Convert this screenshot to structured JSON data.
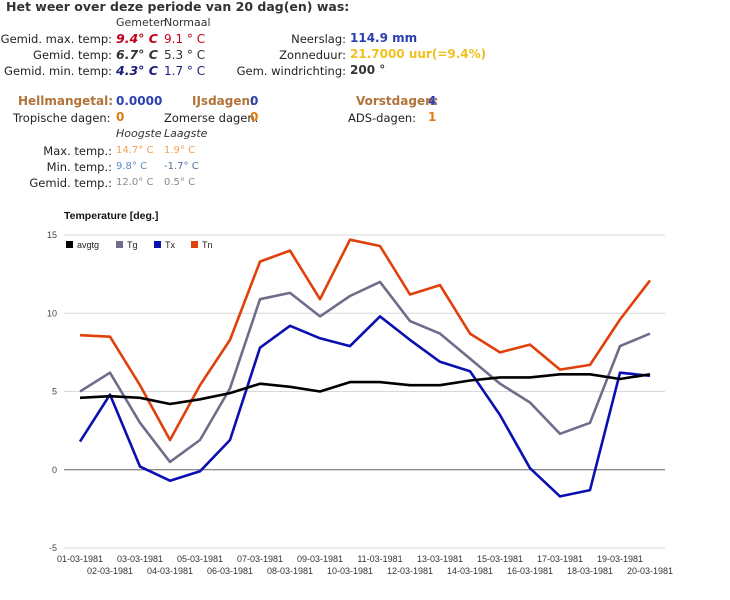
{
  "summary": {
    "title": "Het weer over deze periode van 20 dag(en) was:",
    "header_measured": "Gemeten",
    "header_normal": "Normaal",
    "rows": [
      {
        "label": "Gemid. max. temp:",
        "measured": "9.4° C",
        "normal": "9.1 ° C",
        "measured_color": "#c0001a"
      },
      {
        "label": "Gemid. temp:",
        "measured": "6.7° C",
        "normal": "5.3 ° C",
        "measured_color": "#333333"
      },
      {
        "label": "Gemid. min. temp:",
        "measured": "4.3° C",
        "normal": "1.7 ° C",
        "measured_color": "#1b1b7a"
      }
    ],
    "right": [
      {
        "label": "Neerslag:",
        "value": "114.9 mm"
      },
      {
        "label": "Zonneduur:",
        "value": "21.7000 uur",
        "extra": "(=9.4%)"
      },
      {
        "label": "Gem. windrichting:",
        "value": "200 °"
      }
    ]
  },
  "counts": {
    "hellmann_label": "Hellmangetal:",
    "hellmann_value": "0.0000",
    "ijsdagen_label": "IJsdagen:",
    "ijsdagen_value": "0",
    "vorstdagen_label": "Vorstdagen:",
    "vorstdagen_value": "4",
    "tropische_label": "Tropische dagen:",
    "tropische_value": "0",
    "zomerse_label": "Zomerse dagen:",
    "zomerse_value": "0",
    "ads_label": "ADS-dagen:",
    "ads_value": "1"
  },
  "extremes": {
    "header_high": "Hoogste",
    "header_low": "Laagste",
    "rows": [
      {
        "label": "Max. temp.:",
        "high": "14.7° C",
        "low": "1.9° C"
      },
      {
        "label": "Min. temp.:",
        "high": "9.8° C",
        "low": "-1.7° C"
      },
      {
        "label": "Gemid. temp.:",
        "high": "12.0° C",
        "low": "0.5° C"
      }
    ]
  },
  "colors": {
    "avgtg": "#000000",
    "tg": "#6e6e8a",
    "tx": "#0a10b0",
    "tn": "#e0400a",
    "grid": "#d8d8d8",
    "zero_line": "#666666"
  },
  "chart_data": {
    "type": "line",
    "title": "Temperature [deg.]",
    "x": [
      "01-03-1981",
      "02-03-1981",
      "03-03-1981",
      "04-03-1981",
      "05-03-1981",
      "06-03-1981",
      "07-03-1981",
      "08-03-1981",
      "09-03-1981",
      "10-03-1981",
      "11-03-1981",
      "12-03-1981",
      "13-03-1981",
      "14-03-1981",
      "15-03-1981",
      "16-03-1981",
      "17-03-1981",
      "18-03-1981",
      "19-03-1981",
      "20-03-1981"
    ],
    "ylim": [
      -5,
      15
    ],
    "yticks": [
      -5,
      0,
      5,
      10,
      15
    ],
    "grid": true,
    "legend_position": "top-left",
    "series": [
      {
        "name": "avgtg",
        "color_key": "avgtg",
        "values": [
          4.6,
          4.7,
          4.6,
          4.2,
          4.5,
          4.9,
          5.5,
          5.3,
          5.0,
          5.6,
          5.6,
          5.4,
          5.4,
          5.7,
          5.9,
          5.9,
          6.1,
          6.1,
          5.8,
          6.1
        ]
      },
      {
        "name": "Tg",
        "color_key": "tg",
        "values": [
          5.0,
          6.2,
          3.0,
          0.5,
          1.9,
          5.2,
          10.9,
          11.3,
          9.8,
          11.1,
          12.0,
          9.5,
          8.7,
          7.1,
          5.5,
          4.3,
          2.3,
          3.0,
          7.9,
          8.7
        ]
      },
      {
        "name": "Tx",
        "color_key": "tx",
        "values": [
          1.8,
          4.8,
          0.2,
          -0.7,
          -0.1,
          1.9,
          7.8,
          9.2,
          8.4,
          7.9,
          9.8,
          8.3,
          6.9,
          6.3,
          3.5,
          0.1,
          -1.7,
          -1.3,
          6.2,
          6.0
        ]
      },
      {
        "name": "Tn",
        "color_key": "tn",
        "values": [
          8.6,
          8.5,
          5.4,
          1.9,
          5.4,
          8.3,
          13.3,
          14.0,
          10.9,
          14.7,
          14.3,
          11.2,
          11.8,
          8.7,
          7.5,
          8.0,
          6.4,
          6.7,
          9.6,
          12.1
        ]
      }
    ]
  }
}
